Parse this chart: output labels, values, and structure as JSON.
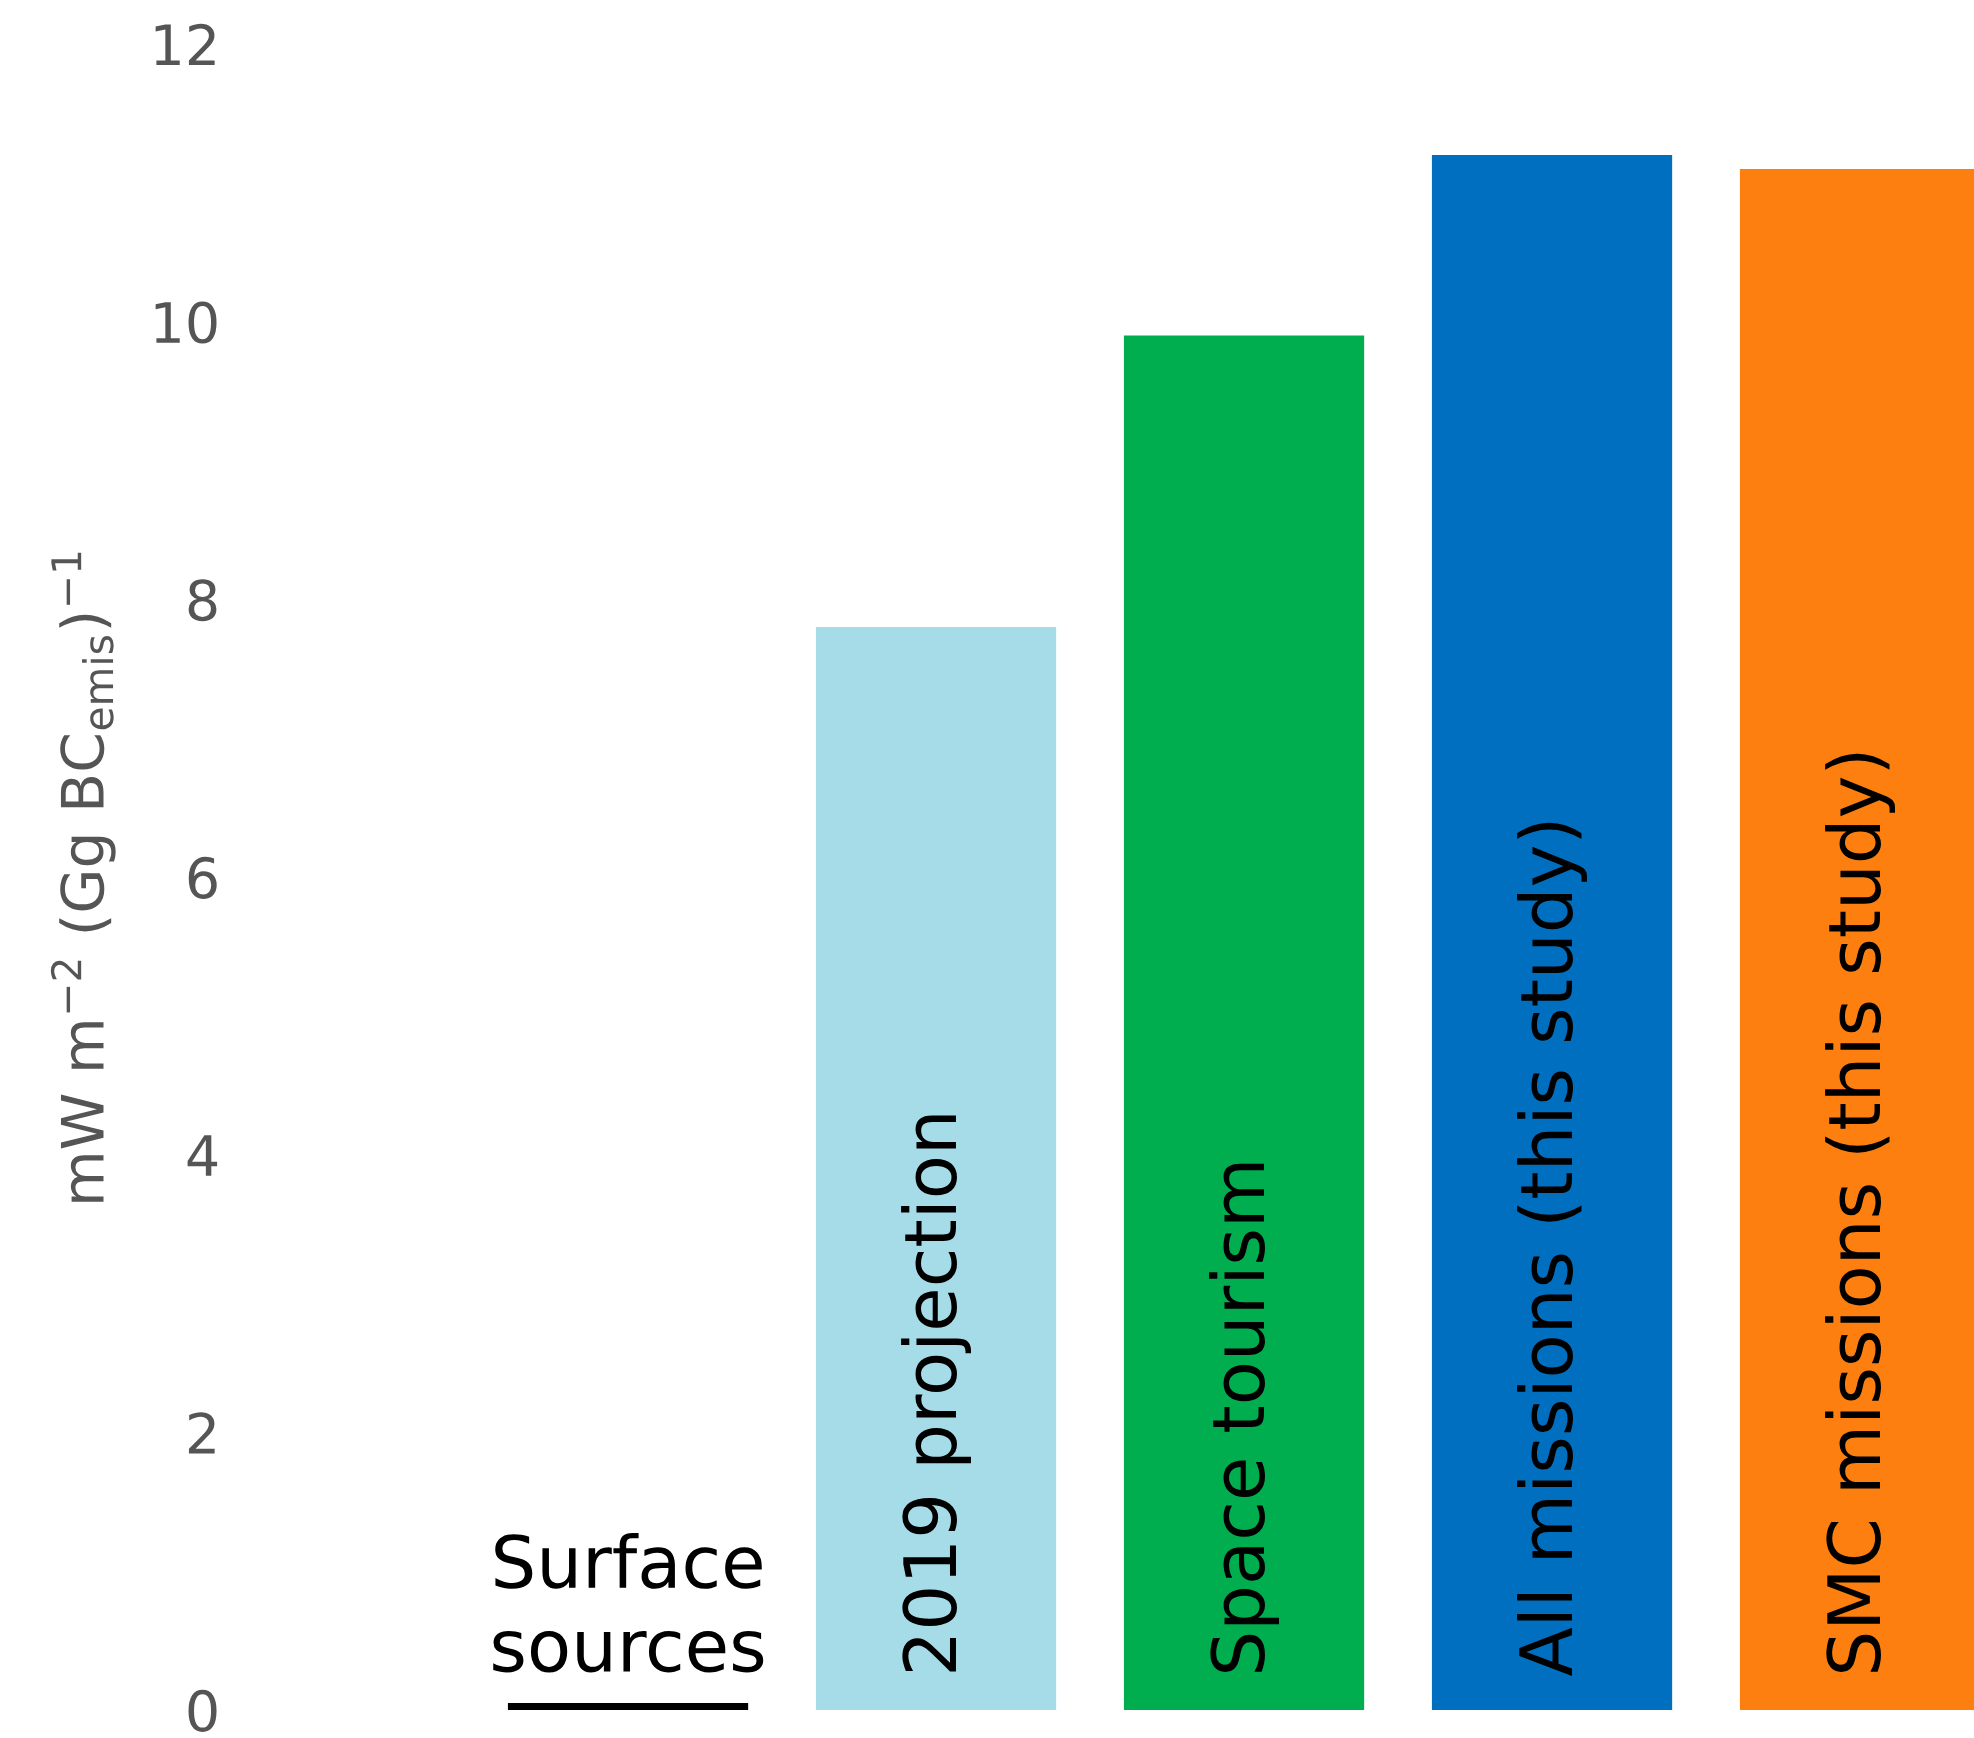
{
  "chart_data": {
    "type": "bar",
    "ylabel": "mW m$^{−2}$ (Gg BC$_{emis}$)$^{−1}$",
    "categories": [
      "Surface sources",
      "2019 projection",
      "Space tourism",
      "All missions (this study)",
      "SMC missions (this study)"
    ],
    "values": [
      0.05,
      7.8,
      9.9,
      11.2,
      11.1
    ],
    "colors": [
      "#000000",
      "#a6dce8",
      "#00ad4f",
      "#006fc0",
      "#fd7f10"
    ],
    "ylim": [
      0,
      12
    ],
    "yticks": [
      0,
      2,
      4,
      6,
      8,
      10,
      12
    ]
  }
}
